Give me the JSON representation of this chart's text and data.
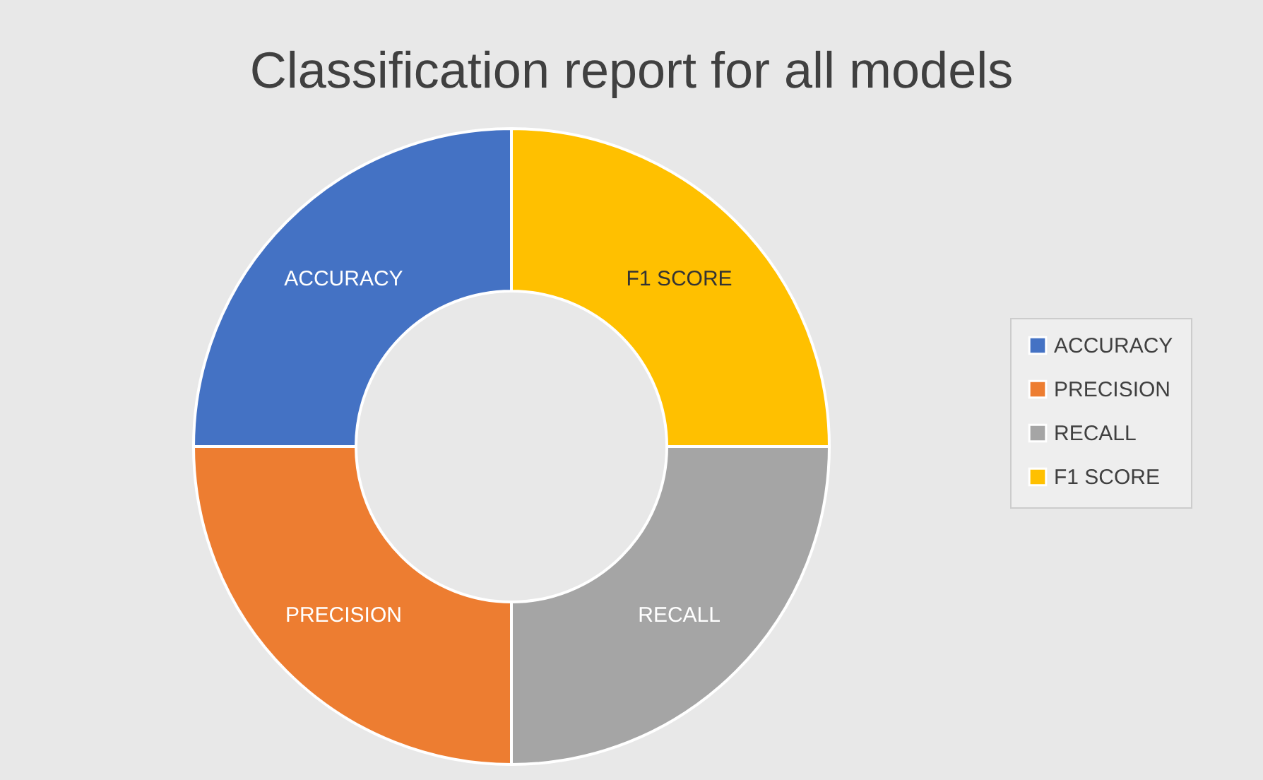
{
  "chart_data": {
    "type": "donut",
    "title": "Classification report for all models",
    "categories": [
      "ACCURACY",
      "PRECISION",
      "RECALL",
      "F1 SCORE"
    ],
    "values": [
      25,
      25,
      25,
      25
    ],
    "colors": [
      "#4472c4",
      "#ed7d31",
      "#a5a5a5",
      "#ffc000"
    ],
    "legend": "right"
  }
}
